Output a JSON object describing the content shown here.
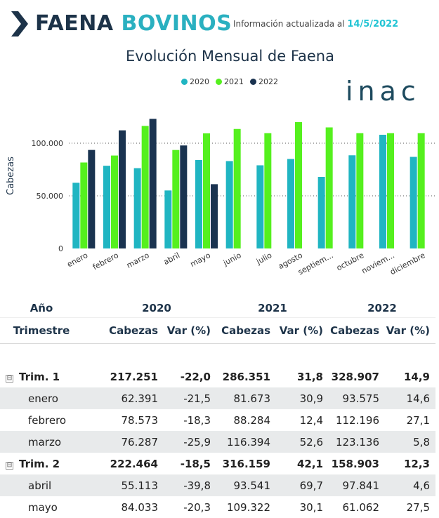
{
  "header": {
    "title_word1": "FAENA",
    "title_word2": "BOVINOS",
    "updated_label": "Información actualizada al",
    "updated_date": "14/5/2022",
    "logo_text": "inac"
  },
  "colors": {
    "s2020": "#20b5c2",
    "s2021": "#55f01e",
    "s2022": "#1a3350",
    "navy": "#1d3349",
    "teal": "#2ab0c0"
  },
  "chart_data": {
    "type": "bar",
    "title": "Evolución Mensual de Faena",
    "ylabel": "Cabezas",
    "xlabel": "",
    "legend_position": "top",
    "grid": true,
    "ylim": [
      0,
      125000
    ],
    "ytick_values": [
      0,
      50000,
      100000
    ],
    "ytick_labels": [
      "0",
      "50.000",
      "100.000"
    ],
    "categories": [
      "enero",
      "febrero",
      "marzo",
      "abril",
      "mayo",
      "junio",
      "julio",
      "agosto",
      "septiem...",
      "octubre",
      "noviem...",
      "diciembre"
    ],
    "series": [
      {
        "name": "2020",
        "color": "#20b5c2",
        "values": [
          62391,
          78573,
          76287,
          55113,
          84033,
          83000,
          79000,
          85000,
          68000,
          88500,
          108000,
          87000
        ]
      },
      {
        "name": "2021",
        "color": "#55f01e",
        "values": [
          81673,
          88284,
          116394,
          93541,
          109322,
          113500,
          109500,
          120000,
          115000,
          109500,
          109500,
          109500
        ]
      },
      {
        "name": "2022",
        "color": "#1a3350",
        "values": [
          93575,
          112196,
          123136,
          97841,
          61062,
          null,
          null,
          null,
          null,
          null,
          null,
          null
        ]
      }
    ]
  },
  "table": {
    "year_header": "Año",
    "years": [
      "2020",
      "2021",
      "2022"
    ],
    "row_header": "Trimestre",
    "col_headers": [
      "Cabezas",
      "Var (%)"
    ],
    "groups": [
      {
        "label": "Trim. 1",
        "toggle": "⊟",
        "values": [
          "217.251",
          "-22,0",
          "286.351",
          "31,8",
          "328.907",
          "14,9"
        ],
        "months": [
          {
            "label": "enero",
            "values": [
              "62.391",
              "-21,5",
              "81.673",
              "30,9",
              "93.575",
              "14,6"
            ]
          },
          {
            "label": "febrero",
            "values": [
              "78.573",
              "-18,3",
              "88.284",
              "12,4",
              "112.196",
              "27,1"
            ]
          },
          {
            "label": "marzo",
            "values": [
              "76.287",
              "-25,9",
              "116.394",
              "52,6",
              "123.136",
              "5,8"
            ]
          }
        ]
      },
      {
        "label": "Trim. 2",
        "toggle": "⊟",
        "values": [
          "222.464",
          "-18,5",
          "316.159",
          "42,1",
          "158.903",
          "12,3"
        ],
        "months": [
          {
            "label": "abril",
            "values": [
              "55.113",
              "-39,8",
              "93.541",
              "69,7",
              "97.841",
              "4,6"
            ]
          },
          {
            "label": "mayo",
            "values": [
              "84.033",
              "-20,3",
              "109.322",
              "30,1",
              "61.062",
              "27,5"
            ]
          }
        ]
      }
    ]
  }
}
